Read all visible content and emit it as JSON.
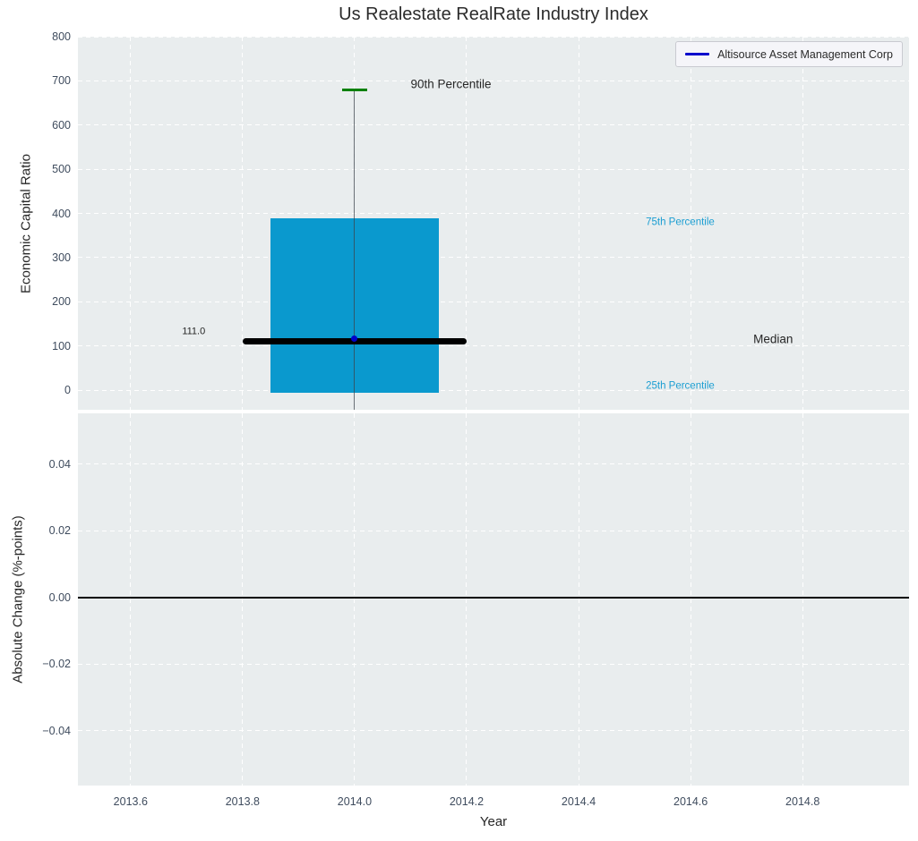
{
  "figure": {
    "title": "Us Realestate RealRate Industry Index",
    "legend": {
      "label": "Altisource Asset Management Corp"
    }
  },
  "colors": {
    "figure_bg": "#ffffff",
    "axes_bg": "#e9edee",
    "grid": "#ffffff",
    "box_fill": "#0a99ce",
    "percentile_cap": "#008000",
    "median_line": "#000000",
    "whisker": "rgba(60,68,76,0.75)",
    "company_marker": "#0000cc",
    "legend_line": "#0000cc",
    "tick_label": "#3f4c5e",
    "text": "#262626",
    "annotation_blue": "#1b9ed2"
  },
  "chart_data": [
    {
      "id": "economic-capital-ratio",
      "type": "boxplot",
      "title": "Us Realestate RealRate Industry Index",
      "ylabel": "Economic Capital Ratio",
      "xlim": [
        2013.506,
        2014.99
      ],
      "ylim": [
        -44.5,
        800
      ],
      "grid": true,
      "show_xticks": false,
      "yticks": [
        {
          "v": 800,
          "label": "800"
        },
        {
          "v": 700,
          "label": "700"
        },
        {
          "v": 600,
          "label": "600"
        },
        {
          "v": 500,
          "label": "500"
        },
        {
          "v": 400,
          "label": "400"
        },
        {
          "v": 300,
          "label": "300"
        },
        {
          "v": 200,
          "label": "200"
        },
        {
          "v": 100,
          "label": "100"
        },
        {
          "v": 0,
          "label": "0"
        }
      ],
      "xticks": [
        {
          "v": 2013.6,
          "label": "2013.6"
        },
        {
          "v": 2013.8,
          "label": "2013.8"
        },
        {
          "v": 2014.0,
          "label": "2014.0"
        },
        {
          "v": 2014.2,
          "label": "2014.2"
        },
        {
          "v": 2014.4,
          "label": "2014.4"
        },
        {
          "v": 2014.6,
          "label": "2014.6"
        },
        {
          "v": 2014.8,
          "label": "2014.8"
        }
      ],
      "box": {
        "x": 2014.0,
        "box_left": 2013.85,
        "box_right": 2014.15,
        "median_left": 2013.8,
        "median_right": 2014.2,
        "cap_halfwidth": 0.022,
        "p90": 680,
        "p75": 389,
        "median": 111.0,
        "p25": -6,
        "whisker_low_note": "lower whisker extends below visible y-range (clipped at axis bottom)"
      },
      "company_point": {
        "name": "Altisource Asset Management Corp",
        "x": 2014.0,
        "y": 116
      },
      "annotations": [
        {
          "text": "90th Percentile",
          "x": 2014.1,
          "y": 693,
          "color_key": "text",
          "size": 13.5
        },
        {
          "text": "75th Percentile",
          "x": 2014.52,
          "y": 379,
          "color_key": "annotation_blue",
          "size": 11.5
        },
        {
          "text": "25th Percentile",
          "x": 2014.52,
          "y": 9,
          "color_key": "annotation_blue",
          "size": 11.5
        },
        {
          "text": "Median",
          "x": 2014.712,
          "y": 115,
          "color_key": "text",
          "size": 13.5
        },
        {
          "text": "111.0",
          "x": 2013.692,
          "y": 132,
          "color_key": "text",
          "size": 11
        }
      ]
    },
    {
      "id": "absolute-change",
      "type": "line",
      "ylabel": "Absolute Change (%-points)",
      "xlabel": "Year",
      "xlim": [
        2013.506,
        2014.99
      ],
      "ylim": [
        -0.0565,
        0.0553
      ],
      "grid": true,
      "show_xticks": true,
      "zero_line": 0.0,
      "series": [],
      "yticks": [
        {
          "v": 0.04,
          "label": "0.04"
        },
        {
          "v": 0.02,
          "label": "0.02"
        },
        {
          "v": 0.0,
          "label": "0.00"
        },
        {
          "v": -0.02,
          "label": "−0.02"
        },
        {
          "v": -0.04,
          "label": "−0.04"
        }
      ],
      "xticks": [
        {
          "v": 2013.6,
          "label": "2013.6"
        },
        {
          "v": 2013.8,
          "label": "2013.8"
        },
        {
          "v": 2014.0,
          "label": "2014.0"
        },
        {
          "v": 2014.2,
          "label": "2014.2"
        },
        {
          "v": 2014.4,
          "label": "2014.4"
        },
        {
          "v": 2014.6,
          "label": "2014.6"
        },
        {
          "v": 2014.8,
          "label": "2014.8"
        }
      ]
    }
  ]
}
